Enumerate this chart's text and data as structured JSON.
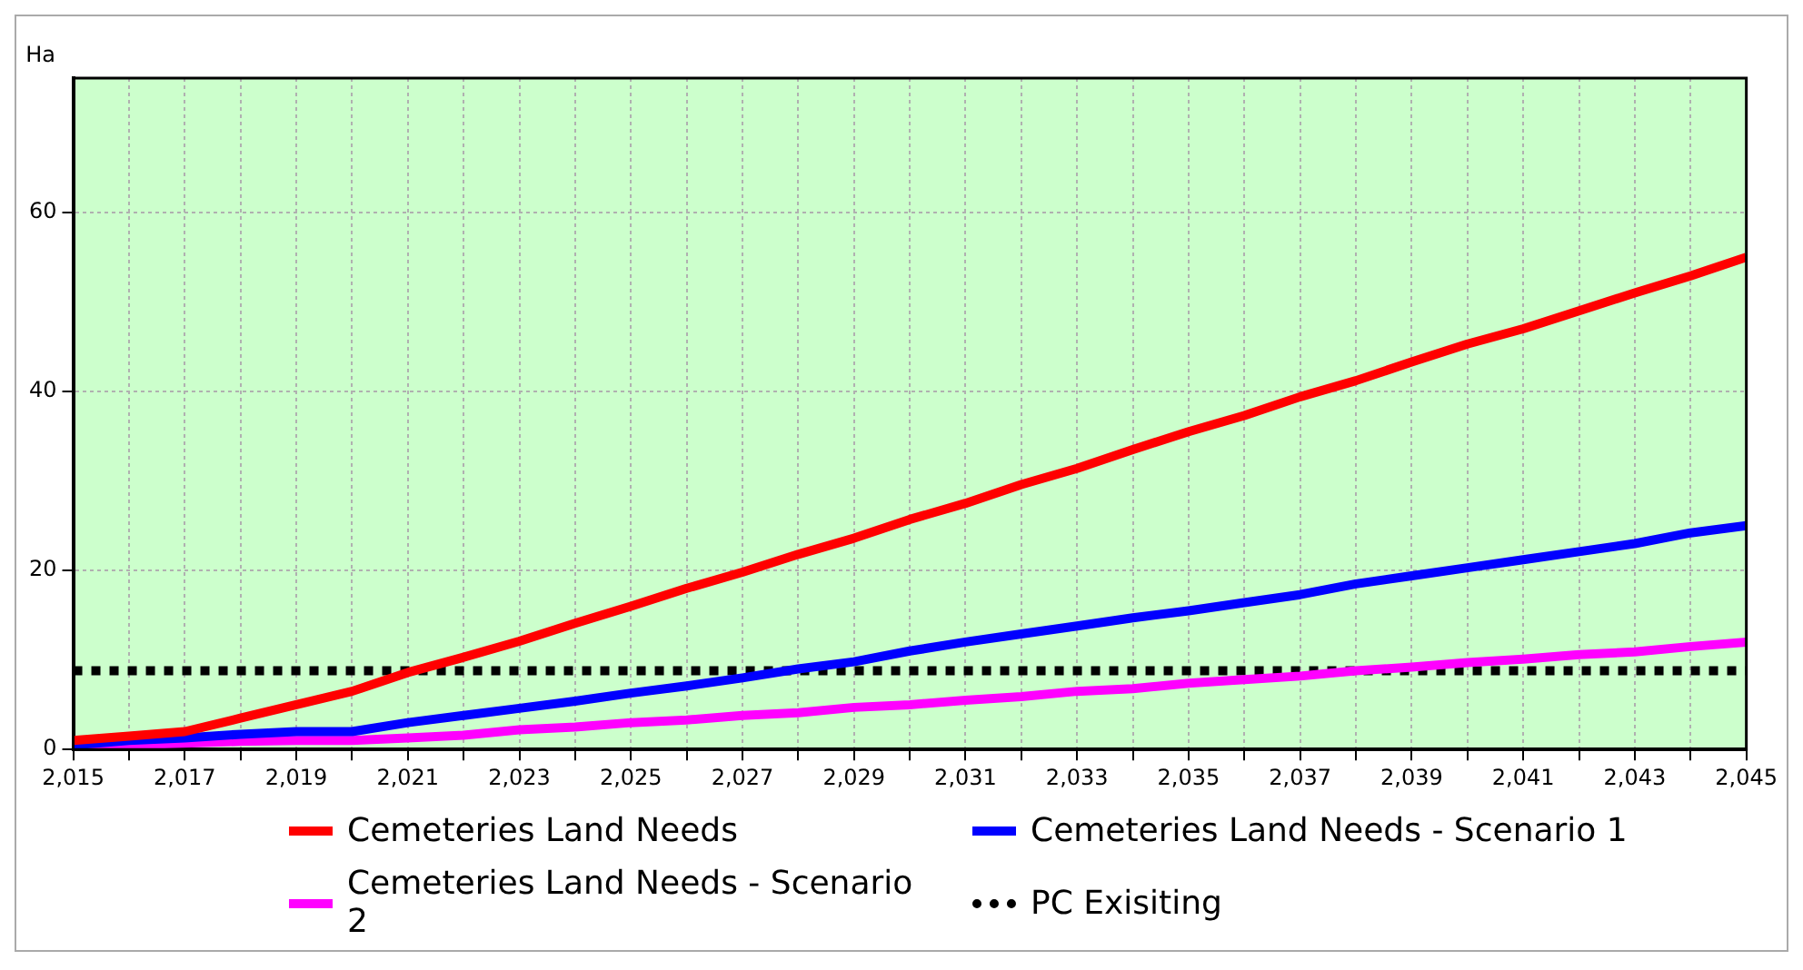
{
  "chart_data": {
    "type": "line",
    "ylabel": "Ha",
    "x": [
      2015,
      2016,
      2017,
      2018,
      2019,
      2020,
      2021,
      2022,
      2023,
      2024,
      2025,
      2026,
      2027,
      2028,
      2029,
      2030,
      2031,
      2032,
      2033,
      2034,
      2035,
      2036,
      2037,
      2038,
      2039,
      2040,
      2041,
      2042,
      2043,
      2044,
      2045
    ],
    "series": [
      {
        "name": "Cemeteries Land Needs",
        "color": "#ff0000",
        "values": [
          1,
          1.5,
          2,
          3.5,
          5,
          6.5,
          8.6,
          10.3,
          12.1,
          14.1,
          16,
          18,
          19.8,
          21.8,
          23.6,
          25.7,
          27.5,
          29.6,
          31.4,
          33.5,
          35.5,
          37.3,
          39.4,
          41.2,
          43.3,
          45.3,
          47,
          49,
          51,
          52.9,
          55
        ]
      },
      {
        "name": "Cemeteries Land Needs - Scenario 1",
        "color": "#0000ff",
        "values": [
          0.5,
          1,
          1.3,
          1.7,
          2,
          2,
          3,
          3.8,
          4.6,
          5.4,
          6.3,
          7.1,
          8,
          9,
          9.8,
          11,
          12,
          12.9,
          13.8,
          14.7,
          15.5,
          16.4,
          17.3,
          18.5,
          19.4,
          20.3,
          21.2,
          22.1,
          23,
          24.2,
          25
        ]
      },
      {
        "name": "Cemeteries Land Needs - Scenario 2",
        "color": "#ff00ff",
        "values": [
          0.3,
          0.5,
          0.7,
          0.9,
          1,
          1,
          1.3,
          1.6,
          2.2,
          2.5,
          3,
          3.3,
          3.8,
          4.1,
          4.7,
          5,
          5.5,
          5.9,
          6.5,
          6.8,
          7.4,
          7.8,
          8.2,
          8.8,
          9.2,
          9.7,
          10.1,
          10.6,
          10.9,
          11.5,
          12
        ]
      },
      {
        "name": "PC Exisiting",
        "color": "#000000",
        "line_style": "dotted",
        "values": [
          8.8,
          8.8,
          8.8,
          8.8,
          8.8,
          8.8,
          8.8,
          8.8,
          8.8,
          8.8,
          8.8,
          8.8,
          8.8,
          8.8,
          8.8,
          8.8,
          8.8,
          8.8,
          8.8,
          8.8,
          8.8,
          8.8,
          8.8,
          8.8,
          8.8,
          8.8,
          8.8,
          8.8,
          8.8,
          8.8,
          8.8
        ]
      }
    ],
    "xlim": [
      2015,
      2045
    ],
    "xticks": [
      {
        "value": 2015,
        "label": "2,015"
      },
      {
        "value": 2016,
        "label": null
      },
      {
        "value": 2017,
        "label": "2,017"
      },
      {
        "value": 2018,
        "label": null
      },
      {
        "value": 2019,
        "label": "2,019"
      },
      {
        "value": 2020,
        "label": null
      },
      {
        "value": 2021,
        "label": "2,021"
      },
      {
        "value": 2022,
        "label": null
      },
      {
        "value": 2023,
        "label": "2,023"
      },
      {
        "value": 2024,
        "label": null
      },
      {
        "value": 2025,
        "label": "2,025"
      },
      {
        "value": 2026,
        "label": null
      },
      {
        "value": 2027,
        "label": "2,027"
      },
      {
        "value": 2028,
        "label": null
      },
      {
        "value": 2029,
        "label": "2,029"
      },
      {
        "value": 2030,
        "label": null
      },
      {
        "value": 2031,
        "label": "2,031"
      },
      {
        "value": 2032,
        "label": null
      },
      {
        "value": 2033,
        "label": "2,033"
      },
      {
        "value": 2034,
        "label": null
      },
      {
        "value": 2035,
        "label": "2,035"
      },
      {
        "value": 2036,
        "label": null
      },
      {
        "value": 2037,
        "label": "2,037"
      },
      {
        "value": 2038,
        "label": null
      },
      {
        "value": 2039,
        "label": "2,039"
      },
      {
        "value": 2040,
        "label": null
      },
      {
        "value": 2041,
        "label": "2,041"
      },
      {
        "value": 2042,
        "label": null
      },
      {
        "value": 2043,
        "label": "2,043"
      },
      {
        "value": 2044,
        "label": null
      },
      {
        "value": 2045,
        "label": "2,045"
      }
    ],
    "ylim": [
      0,
      75
    ],
    "yticks": [
      0,
      20,
      40,
      60
    ],
    "grid": true,
    "legend": "bottom",
    "marker": "none"
  }
}
